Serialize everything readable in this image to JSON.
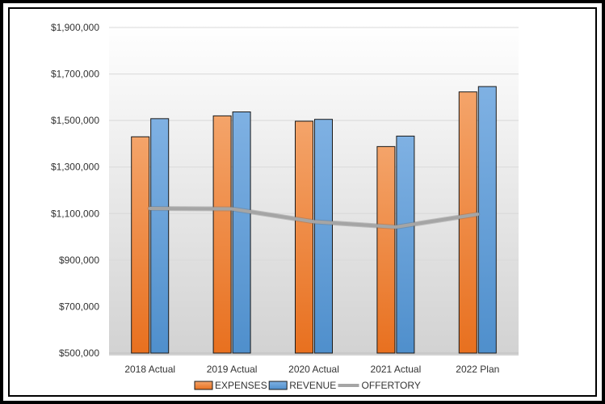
{
  "chart_data": {
    "type": "bar",
    "title": "",
    "xlabel": "",
    "ylabel": "",
    "categories": [
      "2018 Actual",
      "2019 Actual",
      "2020 Actual",
      "2021 Actual",
      "2022 Plan"
    ],
    "series": [
      {
        "name": "EXPENSES",
        "kind": "bar",
        "color": "#ED7D31",
        "values": [
          1430000,
          1520000,
          1497000,
          1388000,
          1623000
        ]
      },
      {
        "name": "REVENUE",
        "kind": "bar",
        "color": "#5B9BD5",
        "values": [
          1508000,
          1537000,
          1505000,
          1433000,
          1646000
        ]
      },
      {
        "name": "OFFERTORY",
        "kind": "line",
        "color": "#A5A5A5",
        "values": [
          1122000,
          1120000,
          1065000,
          1042000,
          1097000
        ]
      }
    ],
    "ylim": [
      500000,
      1900000
    ],
    "yticks": [
      500000,
      700000,
      900000,
      1100000,
      1300000,
      1500000,
      1700000,
      1900000
    ],
    "ytick_labels": [
      "$500,000",
      "$700,000",
      "$900,000",
      "$1,100,000",
      "$1,300,000",
      "$1,500,000",
      "$1,700,000",
      "$1,900,000"
    ],
    "grid": true,
    "legend_position": "bottom"
  }
}
